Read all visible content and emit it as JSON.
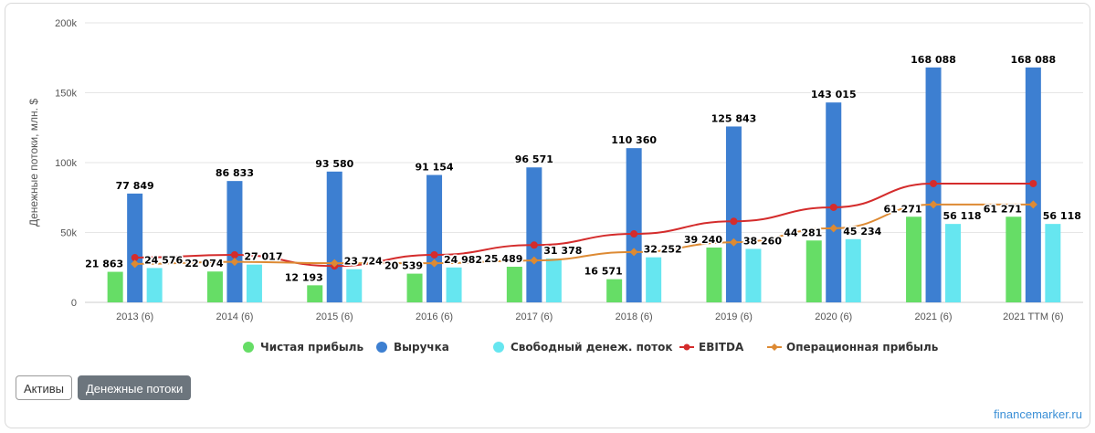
{
  "chart_data": {
    "type": "bar",
    "categories": [
      "2013 (6)",
      "2014 (6)",
      "2015 (6)",
      "2016 (6)",
      "2017 (6)",
      "2018 (6)",
      "2019 (6)",
      "2020 (6)",
      "2021 (6)",
      "2021 TTM (6)"
    ],
    "ylabel": "Денежные потоки, млн. $",
    "ylim": [
      0,
      200000
    ],
    "yticks": [
      0,
      50000,
      100000,
      150000,
      200000
    ],
    "ytick_labels": [
      "0",
      "50k",
      "100k",
      "150k",
      "200k"
    ],
    "grid": true,
    "legend_position": "bottom",
    "series": [
      {
        "name": "Чистая прибыль",
        "kind": "bar",
        "color": "#66dd66",
        "values": [
          21863,
          22074,
          12193,
          20539,
          25489,
          16571,
          39240,
          44281,
          61271,
          61271
        ],
        "labels": [
          "21 863",
          "22 074",
          "12 193",
          "20 539",
          "25 489",
          "16 571",
          "39 240",
          "44 281",
          "61 271",
          "61 271"
        ]
      },
      {
        "name": "Выручка",
        "kind": "bar",
        "color": "#3d7fd1",
        "values": [
          77849,
          86833,
          93580,
          91154,
          96571,
          110360,
          125843,
          143015,
          168088,
          168088
        ],
        "labels": [
          "77 849",
          "86 833",
          "93 580",
          "91 154",
          "96 571",
          "110 360",
          "125 843",
          "143 015",
          "168 088",
          "168 088"
        ]
      },
      {
        "name": "Свободный денеж. поток",
        "kind": "bar",
        "color": "#66e6f0",
        "values": [
          24576,
          27017,
          23724,
          24982,
          31378,
          32252,
          38260,
          45234,
          56118,
          56118
        ],
        "labels": [
          "24 576",
          "27 017",
          "23 724",
          "24 982",
          "31 378",
          "32 252",
          "38 260",
          "45 234",
          "56 118",
          "56 118"
        ]
      },
      {
        "name": "EBITDA",
        "kind": "line",
        "color": "#d42c2c",
        "values": [
          32000,
          34000,
          26000,
          34000,
          41000,
          49000,
          58000,
          68000,
          85000,
          85000
        ]
      },
      {
        "name": "Операционная прибыль",
        "kind": "line",
        "color": "#dd8a33",
        "values": [
          27500,
          29000,
          28000,
          28000,
          30000,
          36000,
          43000,
          53000,
          70000,
          70000
        ]
      }
    ]
  },
  "tabs": {
    "assets": "Активы",
    "cash_flows": "Денежные потоки"
  },
  "footer": {
    "brand": "financemarker.ru"
  }
}
